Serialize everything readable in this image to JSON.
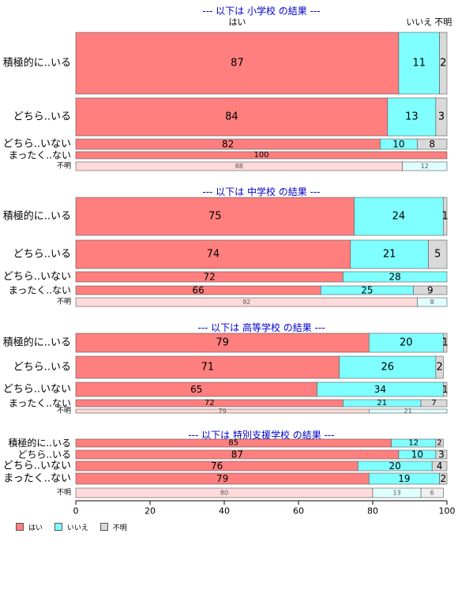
{
  "chart_data": {
    "type": "bar",
    "orientation": "horizontal",
    "stacked": true,
    "xlim": [
      0,
      100
    ],
    "x_ticks": [
      "0",
      "20",
      "40",
      "60",
      "80",
      "100"
    ],
    "column_headers": [
      "はい",
      "いいえ",
      "不明"
    ],
    "legend": {
      "placement": "bottom-left",
      "items": [
        "はい",
        "いいえ",
        "不明"
      ]
    },
    "colors": {
      "yes": "#ff7f7f",
      "no": "#7fffff",
      "unknown": "#d9d9d9",
      "yes_light": "#ffdada",
      "no_light": "#e0ffff",
      "unknown_light": "#f0f0f0",
      "title": "#0000cc"
    },
    "panels": [
      {
        "title": "--- 以下は 小学校 の結果 ---",
        "rows": [
          {
            "label": "積極的に..いる",
            "values": [
              87,
              11,
              2
            ]
          },
          {
            "label": "どちら..いる",
            "values": [
              84,
              13,
              3
            ]
          },
          {
            "label": "どちら..いない",
            "values": [
              82,
              10,
              8
            ]
          },
          {
            "label": "まったく..ない",
            "values": [
              100,
              0,
              0
            ]
          },
          {
            "label": "不明",
            "values": [
              88,
              12,
              0
            ]
          }
        ]
      },
      {
        "title": "--- 以下は 中学校 の結果 ---",
        "rows": [
          {
            "label": "積極的に..いる",
            "values": [
              75,
              24,
              1
            ]
          },
          {
            "label": "どちら..いる",
            "values": [
              74,
              21,
              5
            ]
          },
          {
            "label": "どちら..いない",
            "values": [
              72,
              28,
              0
            ]
          },
          {
            "label": "まったく..ない",
            "values": [
              66,
              25,
              9
            ]
          },
          {
            "label": "不明",
            "values": [
              92,
              8,
              0
            ]
          }
        ]
      },
      {
        "title": "--- 以下は 高等学校 の結果 ---",
        "rows": [
          {
            "label": "積極的に..いる",
            "values": [
              79,
              20,
              1
            ]
          },
          {
            "label": "どちら..いる",
            "values": [
              71,
              26,
              2
            ]
          },
          {
            "label": "どちら..いない",
            "values": [
              65,
              34,
              1
            ]
          },
          {
            "label": "まったく..ない",
            "values": [
              72,
              21,
              7
            ]
          },
          {
            "label": "不明",
            "values": [
              79,
              21,
              0
            ]
          }
        ]
      },
      {
        "title": "--- 以下は 特別支援学校 の結果 ---",
        "rows": [
          {
            "label": "積極的に..いる",
            "values": [
              85,
              12,
              2
            ]
          },
          {
            "label": "どちら..いる",
            "values": [
              87,
              10,
              3
            ]
          },
          {
            "label": "どちら..いない",
            "values": [
              76,
              20,
              4
            ]
          },
          {
            "label": "まったく..ない",
            "values": [
              79,
              19,
              2
            ]
          },
          {
            "label": "不明",
            "values": [
              80,
              13,
              6
            ]
          }
        ]
      }
    ]
  }
}
